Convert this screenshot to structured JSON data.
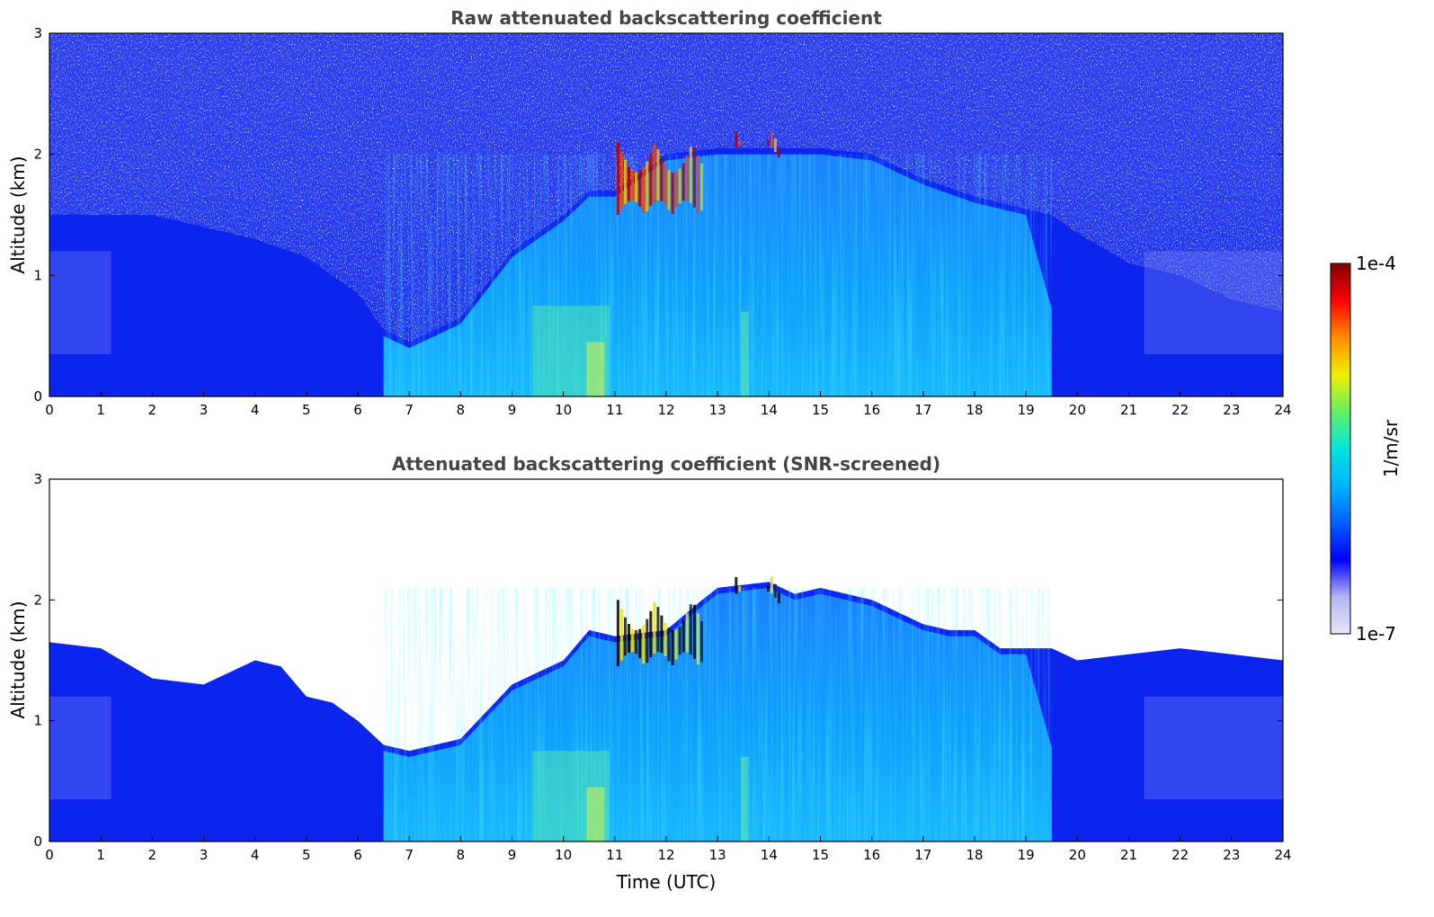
{
  "chart_data": [
    {
      "type": "heatmap",
      "title": "Raw attenuated backscattering coefficient",
      "xlabel": "",
      "ylabel": "Altitude (km)",
      "xlim": [
        0,
        24
      ],
      "ylim": [
        0,
        3
      ],
      "x_ticks": [
        "0",
        "1",
        "2",
        "3",
        "4",
        "5",
        "6",
        "7",
        "8",
        "9",
        "10",
        "11",
        "12",
        "13",
        "14",
        "15",
        "16",
        "17",
        "18",
        "19",
        "20",
        "21",
        "22",
        "23",
        "24"
      ],
      "y_ticks": [
        "0",
        "1",
        "2",
        "3"
      ],
      "screened": false,
      "boundary_layer_top_km": {
        "t": [
          0,
          2,
          4,
          5,
          6,
          6.5,
          7,
          8,
          9,
          10,
          10.5,
          11,
          12,
          13,
          14,
          15,
          16,
          17,
          18,
          19,
          19.5,
          20,
          21,
          22,
          23,
          24
        ],
        "h": [
          1.5,
          1.5,
          1.3,
          1.15,
          0.85,
          0.55,
          0.45,
          0.65,
          1.2,
          1.5,
          1.7,
          1.7,
          2.0,
          2.05,
          2.05,
          2.05,
          2.0,
          1.8,
          1.65,
          1.55,
          1.5,
          1.35,
          1.1,
          1.0,
          0.8,
          0.7
        ]
      },
      "cloud_layers": [
        {
          "t_start": 11.0,
          "t_end": 12.7,
          "base_km": 1.5,
          "top_km": 2.1
        },
        {
          "t_start": 13.3,
          "t_end": 14.2,
          "base_km": 1.95,
          "top_km": 2.2
        }
      ],
      "aerosol_plume": {
        "t_start": 6.5,
        "t_end": 19.5,
        "peak_t": 10.6
      }
    },
    {
      "type": "heatmap",
      "title": "Attenuated backscattering coefficient (SNR-screened)",
      "xlabel": "Time (UTC)",
      "ylabel": "Altitude (km)",
      "xlim": [
        0,
        24
      ],
      "ylim": [
        0,
        3
      ],
      "x_ticks": [
        "0",
        "1",
        "2",
        "3",
        "4",
        "5",
        "6",
        "7",
        "8",
        "9",
        "10",
        "11",
        "12",
        "13",
        "14",
        "15",
        "16",
        "17",
        "18",
        "19",
        "20",
        "21",
        "22",
        "23",
        "24"
      ],
      "y_ticks": [
        "0",
        "1",
        "2",
        "3"
      ],
      "screened": true,
      "boundary_layer_top_km": {
        "t": [
          0,
          1,
          2,
          3,
          4,
          4.5,
          5,
          5.5,
          6,
          6.5,
          7,
          8,
          9,
          9.5,
          10,
          10.5,
          11,
          12,
          12.7,
          13,
          14,
          14.5,
          15,
          16,
          17,
          17.5,
          18,
          18.5,
          19,
          19.5,
          20,
          21,
          22,
          23,
          24
        ],
        "h": [
          1.65,
          1.6,
          1.35,
          1.3,
          1.5,
          1.45,
          1.2,
          1.15,
          1.0,
          0.8,
          0.75,
          0.85,
          1.3,
          1.4,
          1.5,
          1.75,
          1.7,
          1.75,
          2.0,
          2.1,
          2.15,
          2.05,
          2.1,
          2.0,
          1.8,
          1.75,
          1.75,
          1.6,
          1.6,
          1.6,
          1.5,
          1.55,
          1.6,
          1.55,
          1.5
        ]
      },
      "cloud_layers": [
        {
          "t_start": 11.0,
          "t_end": 12.7,
          "base_km": 1.45,
          "top_km": 2.0
        },
        {
          "t_start": 13.3,
          "t_end": 14.2,
          "base_km": 1.95,
          "top_km": 2.2
        }
      ],
      "aerosol_plume": {
        "t_start": 6.5,
        "t_end": 19.5,
        "peak_t": 10.6
      }
    }
  ],
  "colorbar": {
    "max_label": "1e-4",
    "min_label": "1e-7",
    "unit_label": "1/m/sr",
    "colors": [
      "#e6e6f7",
      "#b4b4f0",
      "#0000ff",
      "#0060ff",
      "#00b4ff",
      "#00e6dc",
      "#64f064",
      "#f0f000",
      "#ff8c00",
      "#ff0000",
      "#800000"
    ]
  }
}
